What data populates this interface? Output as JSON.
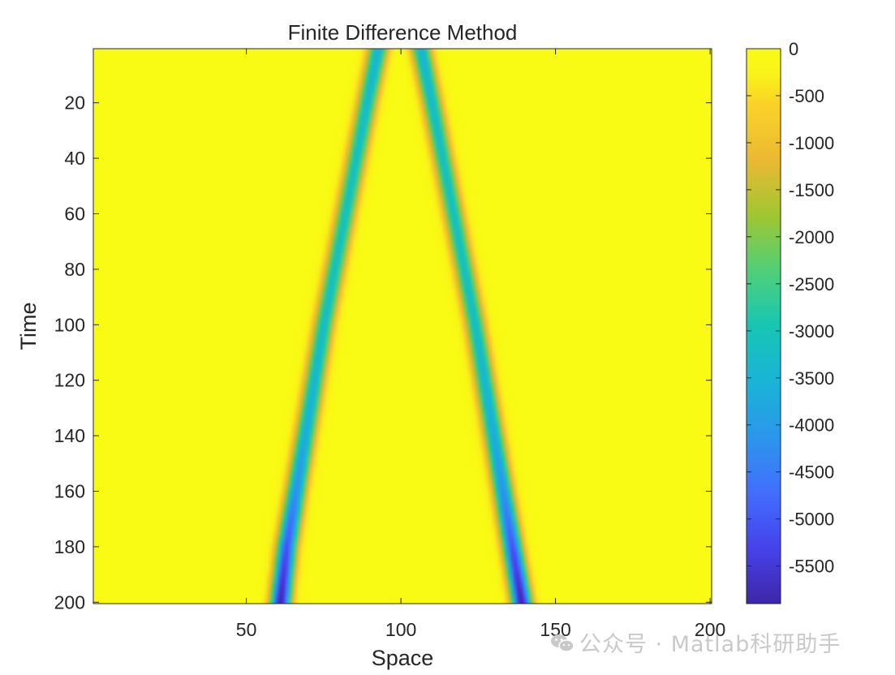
{
  "chart_data": {
    "type": "heatmap",
    "title": "Finite Difference Method",
    "xlabel": "Space",
    "ylabel": "Time",
    "xlim": [
      1,
      200
    ],
    "ylim": [
      1,
      200
    ],
    "y_reversed": true,
    "x_ticks": [
      50,
      100,
      150,
      200
    ],
    "y_ticks": [
      20,
      40,
      60,
      80,
      100,
      120,
      140,
      160,
      180,
      200
    ],
    "colorbar": {
      "ticks": [
        0,
        -500,
        -1000,
        -1500,
        -2000,
        -2500,
        -3000,
        -3500,
        -4000,
        -4500,
        -5000,
        -5500
      ],
      "tick_labels": [
        "0",
        "-500",
        "-1000",
        "-1500",
        "-2000",
        "-2500",
        "-3000",
        "-3500",
        "-4000",
        "-4500",
        "-5000",
        "-5500"
      ],
      "clim": [
        -5900,
        0
      ],
      "colormap": "parula"
    },
    "series": [
      {
        "ridge_time": [
          1,
          20,
          40,
          60,
          80,
          100,
          120,
          140,
          160,
          180,
          200
        ],
        "ridge_space": [
          92.5,
          89,
          85.5,
          82,
          78.5,
          75,
          72,
          69,
          66,
          63,
          61
        ],
        "ridge_value": [
          -3500,
          -3300,
          -3150,
          -3150,
          -3150,
          -3250,
          -3450,
          -3700,
          -4200,
          -5100,
          -5900
        ]
      },
      {
        "ridge_time": [
          1,
          20,
          40,
          60,
          80,
          100,
          120,
          140,
          160,
          180,
          200
        ],
        "ridge_space": [
          106.5,
          110,
          113.5,
          117,
          120.5,
          124,
          127,
          130,
          133,
          136,
          139
        ],
        "ridge_value": [
          -3500,
          -3300,
          -3150,
          -3150,
          -3150,
          -3250,
          -3450,
          -3700,
          -4200,
          -5100,
          -5900
        ]
      }
    ],
    "grid": false
  },
  "watermark": {
    "text": "公众号 · Matlab科研助手",
    "icon": "wechat-icon"
  }
}
